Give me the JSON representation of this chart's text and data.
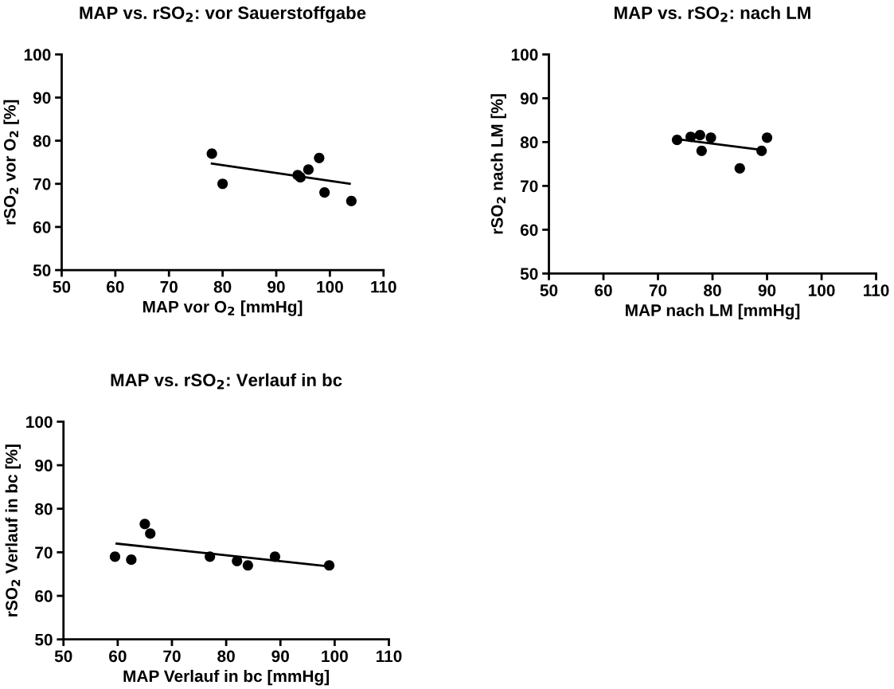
{
  "chart_data": [
    {
      "type": "scatter",
      "title": "MAP vs. rSO$_{2}$: vor Sauerstoffgabe",
      "xlabel": "MAP vor O$_{2}$ [mmHg]",
      "ylabel": "rSO$_{2}$ vor O$_{2}$ [%]",
      "xlim": [
        50,
        110
      ],
      "xticks": [
        50,
        60,
        70,
        80,
        90,
        100,
        110
      ],
      "ylim": [
        50,
        100
      ],
      "yticks": [
        50,
        60,
        70,
        80,
        90,
        100
      ],
      "grid": false,
      "series": [
        {
          "color": "#000000",
          "marker": "circle",
          "x": [
            78,
            80,
            94,
            94.5,
            96,
            98,
            99,
            104
          ],
          "values": [
            77,
            70,
            72,
            71.5,
            73.3,
            76,
            68,
            66
          ]
        },
        {
          "type": "line",
          "marker": "none",
          "color": "#000000",
          "x": [
            78,
            103.7
          ],
          "values": [
            74.7,
            70
          ]
        }
      ]
    },
    {
      "type": "scatter",
      "title": "MAP vs. rSO$_{2}$: nach LM",
      "xlabel": "MAP nach LM [mmHg]",
      "ylabel": "rSO$_{2}$ nach LM [%]",
      "xlim": [
        50,
        110
      ],
      "xticks": [
        50,
        60,
        70,
        80,
        90,
        100,
        110
      ],
      "ylim": [
        50,
        100
      ],
      "yticks": [
        50,
        60,
        70,
        80,
        90,
        100
      ],
      "grid": false,
      "series": [
        {
          "color": "#000000",
          "marker": "circle",
          "x": [
            73.5,
            76,
            77.7,
            79.7,
            78,
            85,
            89,
            90
          ],
          "values": [
            80.5,
            81.2,
            81.6,
            81,
            78,
            74,
            78,
            81
          ]
        },
        {
          "type": "line",
          "marker": "none",
          "color": "#000000",
          "x": [
            74,
            89
          ],
          "values": [
            80.6,
            78.2
          ]
        }
      ]
    },
    {
      "type": "scatter",
      "title": "MAP vs. rSO$_{2}$: Verlauf in bc",
      "xlabel": "MAP Verlauf in bc [mmHg]",
      "ylabel": "rSO$_{2}$ Verlauf in bc [%]",
      "xlim": [
        50,
        110
      ],
      "xticks": [
        50,
        60,
        70,
        80,
        90,
        100,
        110
      ],
      "ylim": [
        50,
        100
      ],
      "yticks": [
        50,
        60,
        70,
        80,
        90,
        100
      ],
      "grid": false,
      "series": [
        {
          "color": "#000000",
          "marker": "circle",
          "x": [
            59.5,
            62.5,
            65,
            66,
            77,
            82,
            84,
            89,
            99
          ],
          "values": [
            69,
            68.3,
            76.5,
            74.3,
            69,
            68,
            67,
            69,
            67
          ]
        },
        {
          "type": "line",
          "marker": "none",
          "color": "#000000",
          "x": [
            59.8,
            98.8
          ],
          "values": [
            72,
            66.8
          ]
        }
      ]
    }
  ]
}
